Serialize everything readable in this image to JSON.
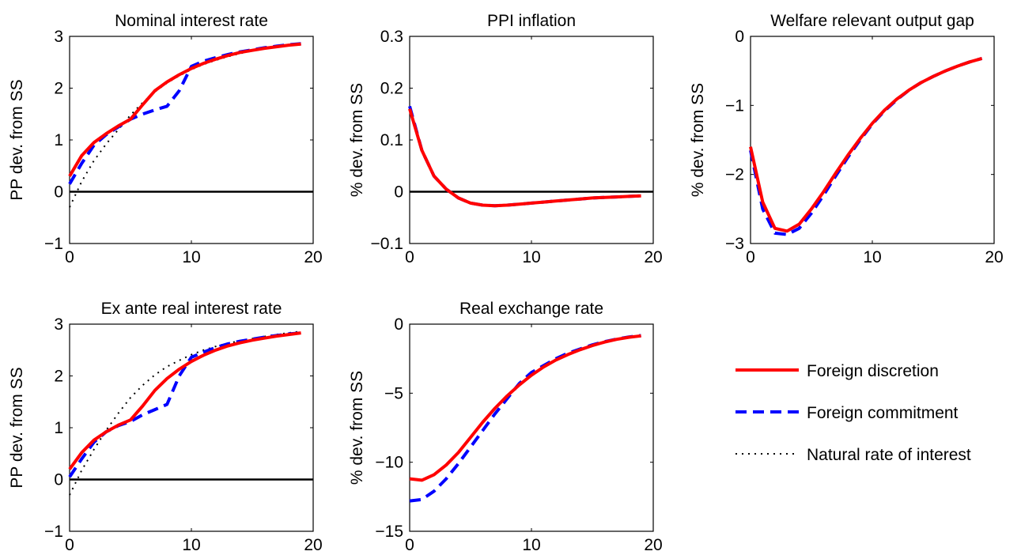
{
  "colors": {
    "discretion": "#ff0000",
    "commitment": "#0000ff",
    "natural": "#000000",
    "zero_line": "#000000"
  },
  "legend": {
    "placement": "bottom-right",
    "entries": [
      {
        "key": "discretion",
        "label": "Foreign discretion",
        "style": "solid"
      },
      {
        "key": "commitment",
        "label": "Foreign commitment",
        "style": "dashed"
      },
      {
        "key": "natural",
        "label": "Natural rate of interest",
        "style": "dotted"
      }
    ]
  },
  "chart_data": [
    {
      "type": "line",
      "title": "Nominal interest rate",
      "xlabel": "",
      "ylabel": "PP dev. from SS",
      "xlim": [
        0,
        20
      ],
      "ylim": [
        -1,
        3
      ],
      "xticks": [
        0,
        10,
        20
      ],
      "yticks": [
        -1,
        0,
        1,
        2,
        3
      ],
      "x": [
        0,
        1,
        2,
        3,
        4,
        5,
        6,
        7,
        8,
        9,
        10,
        11,
        12,
        13,
        14,
        15,
        16,
        17,
        18,
        19
      ],
      "zero_line": true,
      "series": [
        {
          "key": "discretion",
          "name": "Foreign discretion",
          "values": [
            0.3,
            0.7,
            0.95,
            1.12,
            1.27,
            1.4,
            1.68,
            1.95,
            2.12,
            2.26,
            2.38,
            2.48,
            2.56,
            2.63,
            2.69,
            2.73,
            2.77,
            2.8,
            2.83,
            2.85
          ]
        },
        {
          "key": "commitment",
          "name": "Foreign commitment",
          "values": [
            0.15,
            0.55,
            0.9,
            1.1,
            1.25,
            1.4,
            1.5,
            1.58,
            1.65,
            1.95,
            2.42,
            2.52,
            2.59,
            2.65,
            2.7,
            2.74,
            2.78,
            2.81,
            2.84,
            2.86
          ]
        },
        {
          "key": "natural",
          "name": "Natural rate of interest",
          "values": [
            -0.3,
            0.2,
            0.6,
            0.92,
            1.2,
            1.48,
            1.72,
            1.93,
            2.1,
            2.24,
            2.36,
            2.46,
            2.54,
            2.61,
            2.67,
            2.72,
            2.76,
            2.8,
            2.83,
            2.85
          ]
        }
      ]
    },
    {
      "type": "line",
      "title": "PPI inflation",
      "xlabel": "",
      "ylabel": "% dev. from SS",
      "xlim": [
        0,
        20
      ],
      "ylim": [
        -0.1,
        0.3
      ],
      "xticks": [
        0,
        10,
        20
      ],
      "yticks": [
        -0.1,
        0,
        0.1,
        0.2,
        0.3
      ],
      "x": [
        0,
        1,
        2,
        3,
        4,
        5,
        6,
        7,
        8,
        9,
        10,
        11,
        12,
        13,
        14,
        15,
        16,
        17,
        18,
        19
      ],
      "zero_line": true,
      "series": [
        {
          "key": "discretion",
          "name": "Foreign discretion",
          "values": [
            0.16,
            0.08,
            0.03,
            0.005,
            -0.012,
            -0.022,
            -0.026,
            -0.027,
            -0.026,
            -0.024,
            -0.022,
            -0.02,
            -0.018,
            -0.016,
            -0.014,
            -0.012,
            -0.011,
            -0.01,
            -0.009,
            -0.008
          ]
        },
        {
          "key": "commitment",
          "name": "Foreign commitment",
          "values": [
            0.165,
            0.08,
            0.03,
            0.005,
            -0.012,
            -0.022,
            -0.026,
            -0.027,
            -0.026,
            -0.024,
            -0.022,
            -0.02,
            -0.018,
            -0.016,
            -0.014,
            -0.012,
            -0.011,
            -0.01,
            -0.009,
            -0.008
          ]
        }
      ]
    },
    {
      "type": "line",
      "title": "Welfare relevant output gap",
      "xlabel": "",
      "ylabel": "% dev. from SS",
      "xlim": [
        0,
        20
      ],
      "ylim": [
        -3,
        0
      ],
      "xticks": [
        0,
        10,
        20
      ],
      "yticks": [
        -3,
        -2,
        -1,
        0
      ],
      "x": [
        0,
        1,
        2,
        3,
        4,
        5,
        6,
        7,
        8,
        9,
        10,
        11,
        12,
        13,
        14,
        15,
        16,
        17,
        18,
        19
      ],
      "zero_line": false,
      "series": [
        {
          "key": "discretion",
          "name": "Foreign discretion",
          "values": [
            -1.6,
            -2.4,
            -2.78,
            -2.82,
            -2.72,
            -2.5,
            -2.25,
            -1.98,
            -1.72,
            -1.48,
            -1.26,
            -1.07,
            -0.91,
            -0.78,
            -0.67,
            -0.58,
            -0.5,
            -0.43,
            -0.37,
            -0.32
          ]
        },
        {
          "key": "commitment",
          "name": "Foreign commitment",
          "values": [
            -1.65,
            -2.5,
            -2.85,
            -2.87,
            -2.78,
            -2.56,
            -2.3,
            -2.02,
            -1.75,
            -1.5,
            -1.27,
            -1.08,
            -0.92,
            -0.78,
            -0.67,
            -0.58,
            -0.5,
            -0.43,
            -0.37,
            -0.32
          ]
        }
      ]
    },
    {
      "type": "line",
      "title": "Ex ante real interest rate",
      "xlabel": "",
      "ylabel": "PP dev. from SS",
      "xlim": [
        0,
        20
      ],
      "ylim": [
        -1,
        3
      ],
      "xticks": [
        0,
        10,
        20
      ],
      "yticks": [
        -1,
        0,
        1,
        2,
        3
      ],
      "x": [
        0,
        1,
        2,
        3,
        4,
        5,
        6,
        7,
        8,
        9,
        10,
        11,
        12,
        13,
        14,
        15,
        16,
        17,
        18,
        19
      ],
      "zero_line": true,
      "series": [
        {
          "key": "discretion",
          "name": "Foreign discretion",
          "values": [
            0.2,
            0.52,
            0.76,
            0.92,
            1.05,
            1.15,
            1.42,
            1.72,
            1.95,
            2.13,
            2.28,
            2.4,
            2.5,
            2.58,
            2.64,
            2.69,
            2.73,
            2.77,
            2.8,
            2.83
          ]
        },
        {
          "key": "commitment",
          "name": "Foreign commitment",
          "values": [
            0.05,
            0.4,
            0.72,
            0.92,
            1.04,
            1.12,
            1.25,
            1.35,
            1.45,
            2.0,
            2.36,
            2.46,
            2.55,
            2.62,
            2.67,
            2.71,
            2.75,
            2.78,
            2.81,
            2.83
          ]
        },
        {
          "key": "natural",
          "name": "Natural rate of interest",
          "values": [
            -0.3,
            0.18,
            0.58,
            0.95,
            1.28,
            1.58,
            1.82,
            2.02,
            2.18,
            2.3,
            2.41,
            2.5,
            2.57,
            2.63,
            2.68,
            2.72,
            2.76,
            2.8,
            2.83,
            2.86
          ]
        }
      ]
    },
    {
      "type": "line",
      "title": "Real exchange rate",
      "xlabel": "",
      "ylabel": "% dev. from SS",
      "xlim": [
        0,
        20
      ],
      "ylim": [
        -15,
        0
      ],
      "xticks": [
        0,
        10,
        20
      ],
      "yticks": [
        -15,
        -10,
        -5,
        0
      ],
      "x": [
        0,
        1,
        2,
        3,
        4,
        5,
        6,
        7,
        8,
        9,
        10,
        11,
        12,
        13,
        14,
        15,
        16,
        17,
        18,
        19
      ],
      "zero_line": false,
      "series": [
        {
          "key": "discretion",
          "name": "Foreign discretion",
          "values": [
            -11.2,
            -11.3,
            -10.9,
            -10.2,
            -9.3,
            -8.2,
            -7.1,
            -6.1,
            -5.2,
            -4.4,
            -3.7,
            -3.1,
            -2.6,
            -2.2,
            -1.85,
            -1.55,
            -1.3,
            -1.1,
            -0.95,
            -0.85
          ]
        },
        {
          "key": "commitment",
          "name": "Foreign commitment",
          "values": [
            -12.8,
            -12.7,
            -12.1,
            -11.2,
            -10.1,
            -8.9,
            -7.7,
            -6.5,
            -5.4,
            -4.3,
            -3.5,
            -3.0,
            -2.5,
            -2.1,
            -1.8,
            -1.5,
            -1.27,
            -1.08,
            -0.93,
            -0.83
          ]
        }
      ]
    }
  ]
}
